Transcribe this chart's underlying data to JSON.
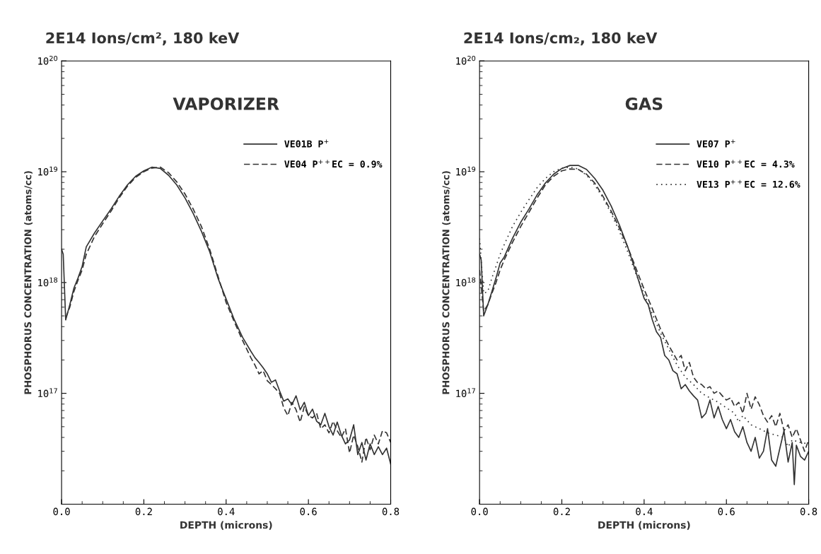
{
  "chart_data": [
    {
      "type": "line",
      "title": "2E14 Ions/cm², 180 keV",
      "xlabel": "DEPTH (microns)",
      "ylabel": "PHOSPHORUS CONCENTRATION (atoms/cc)",
      "annotations": [
        "VAPORIZER"
      ],
      "log": "y",
      "xlim": [
        0,
        0.8
      ],
      "xticks": [
        {
          "value": 0,
          "label": "0.0"
        },
        0.2,
        0.4,
        0.6,
        0.8
      ],
      "ylim": [
        1e+16,
        1e+20
      ],
      "yticks": [
        {
          "value": 1e+17,
          "label": "10$^{17}$"
        },
        {
          "value": 1e+18,
          "label": "10$^{18}$"
        },
        {
          "value": 1e+19,
          "label": "10$^{19}$"
        },
        {
          "value": 1e+20,
          "label": "10$^{20}$"
        }
      ],
      "legend": "top right",
      "grid": false,
      "series": [
        {
          "name": "VE01B P$^{+}$",
          "color": "#333333",
          "line_style": "solid",
          "x": [
            0.0,
            0.004,
            0.01,
            0.02,
            0.03,
            0.04,
            0.05,
            0.06,
            0.08,
            0.1,
            0.12,
            0.14,
            0.16,
            0.18,
            0.2,
            0.22,
            0.24,
            0.26,
            0.28,
            0.3,
            0.32,
            0.34,
            0.36,
            0.38,
            0.4,
            0.42,
            0.44,
            0.46,
            0.47,
            0.48,
            0.49,
            0.5,
            0.51,
            0.52,
            0.53,
            0.54,
            0.55,
            0.56,
            0.57,
            0.58,
            0.59,
            0.6,
            0.61,
            0.62,
            0.63,
            0.64,
            0.65,
            0.66,
            0.67,
            0.68,
            0.69,
            0.7,
            0.71,
            0.72,
            0.73,
            0.74,
            0.75,
            0.76,
            0.77,
            0.78,
            0.79,
            0.8
          ],
          "values": [
            2e+18,
            1.8e+18,
            4.6e+17,
            6.3e+17,
            8.9e+17,
            1.1e+18,
            1.4e+18,
            2.1e+18,
            2.8e+18,
            3.6e+18,
            4.6e+18,
            6e+18,
            7.6e+18,
            9.1e+18,
            1.02e+19,
            1.1e+19,
            1.07e+19,
            9.3e+18,
            7.6e+18,
            5.8e+18,
            4.2e+18,
            2.9e+18,
            1.9e+18,
            1.1e+18,
            7.1e+17,
            4.6e+17,
            3.2e+17,
            2.4e+17,
            2.1e+17,
            1.9e+17,
            1.7e+17,
            1.5e+17,
            1.26e+17,
            1.32e+17,
            1.05e+17,
            8.5e+16,
            8.9e+16,
            7.9e+16,
            9.5e+16,
            7.1e+16,
            8.3e+16,
            6.3e+16,
            7.2e+16,
            5.6e+16,
            5.2e+16,
            6.6e+16,
            5e+16,
            4.2e+16,
            5.5e+16,
            4.2e+16,
            3.5e+16,
            3.8e+16,
            5.2e+16,
            2.8e+16,
            3.6e+16,
            2.5e+16,
            3.5e+16,
            2.8e+16,
            3.3e+16,
            2.8e+16,
            3.2e+16,
            2.3e+16
          ]
        },
        {
          "name": "VE04 P$^{++}$EC = 0.9%",
          "color": "#333333",
          "line_style": "dashed",
          "x": [
            0.01,
            0.02,
            0.03,
            0.04,
            0.05,
            0.06,
            0.08,
            0.1,
            0.12,
            0.14,
            0.16,
            0.18,
            0.2,
            0.22,
            0.24,
            0.26,
            0.28,
            0.3,
            0.32,
            0.34,
            0.36,
            0.38,
            0.4,
            0.42,
            0.44,
            0.46,
            0.47,
            0.48,
            0.49,
            0.5,
            0.51,
            0.52,
            0.53,
            0.54,
            0.55,
            0.56,
            0.57,
            0.58,
            0.59,
            0.6,
            0.61,
            0.62,
            0.63,
            0.64,
            0.65,
            0.66,
            0.67,
            0.68,
            0.69,
            0.7,
            0.71,
            0.72,
            0.73,
            0.74,
            0.75,
            0.76,
            0.77,
            0.78,
            0.79,
            0.8
          ],
          "values": [
            4.8e+17,
            6e+17,
            8.3e+17,
            1.05e+18,
            1.3e+18,
            1.8e+18,
            2.6e+18,
            3.4e+18,
            4.4e+18,
            5.8e+18,
            7.4e+18,
            8.9e+18,
            1e+19,
            1.08e+19,
            1.1e+19,
            9.8e+18,
            8.1e+18,
            6.3e+18,
            4.6e+18,
            3.2e+18,
            2e+18,
            1.15e+18,
            6.6e+17,
            4.4e+17,
            3e+17,
            2.1e+17,
            1.8e+17,
            1.5e+17,
            1.6e+17,
            1.3e+17,
            1.2e+17,
            1.1e+17,
            1e+17,
            7.4e+16,
            6.3e+16,
            8.3e+16,
            7.1e+16,
            5.5e+16,
            7.6e+16,
            6.3e+16,
            6e+16,
            6.6e+16,
            4.8e+16,
            5.2e+16,
            4.4e+16,
            5.6e+16,
            4.6e+16,
            4e+16,
            4.8e+16,
            2.9e+16,
            4.2e+16,
            3.3e+16,
            2.4e+16,
            4e+16,
            3.1e+16,
            4.2e+16,
            3.5e+16,
            4.6e+16,
            4.4e+16,
            3.6e+16
          ]
        }
      ]
    },
    {
      "type": "line",
      "title": "2E14 Ions/cm₂, 180 keV",
      "xlabel": "DEPTH (microns)",
      "ylabel": "PHOSPHORUS CONCENTRATION (atoms/cc)",
      "annotations": [
        "GAS"
      ],
      "log": "y",
      "xlim": [
        0,
        0.8
      ],
      "xticks": [
        {
          "value": 0,
          "label": "0.0"
        },
        0.2,
        0.4,
        0.6,
        0.8
      ],
      "ylim": [
        1e+16,
        1e+20
      ],
      "yticks": [
        {
          "value": 1e+17,
          "label": "10$^{17}$"
        },
        {
          "value": 1e+18,
          "label": "10$^{18}$"
        },
        {
          "value": 1e+19,
          "label": "10$^{19}$"
        },
        {
          "value": 1e+20,
          "label": "10$^{20}$"
        }
      ],
      "legend": "top right",
      "grid": false,
      "series": [
        {
          "name": "VE07 P$^{+}$",
          "color": "#333333",
          "line_style": "solid",
          "x": [
            0.0,
            0.004,
            0.01,
            0.02,
            0.03,
            0.04,
            0.05,
            0.06,
            0.08,
            0.1,
            0.12,
            0.14,
            0.16,
            0.18,
            0.2,
            0.22,
            0.24,
            0.26,
            0.28,
            0.3,
            0.32,
            0.34,
            0.36,
            0.38,
            0.4,
            0.41,
            0.42,
            0.43,
            0.44,
            0.45,
            0.46,
            0.47,
            0.48,
            0.49,
            0.5,
            0.51,
            0.52,
            0.53,
            0.54,
            0.55,
            0.56,
            0.57,
            0.58,
            0.59,
            0.6,
            0.61,
            0.62,
            0.63,
            0.64,
            0.65,
            0.66,
            0.67,
            0.68,
            0.69,
            0.7,
            0.71,
            0.72,
            0.73,
            0.74,
            0.75,
            0.76,
            0.765,
            0.77,
            0.78,
            0.79,
            0.8
          ],
          "values": [
            1.8e+18,
            1.6e+18,
            5e+17,
            6.3e+17,
            8.3e+17,
            1.1e+18,
            1.5e+18,
            1.7e+18,
            2.5e+18,
            3.5e+18,
            4.6e+18,
            6.2e+18,
            7.9e+18,
            9.5e+18,
            1.07e+19,
            1.14e+19,
            1.14e+19,
            1.05e+19,
            8.7e+18,
            6.8e+18,
            4.9e+18,
            3.3e+18,
            2.1e+18,
            1.25e+18,
            7.2e+17,
            6.3e+17,
            4.6e+17,
            3.6e+17,
            3.2e+17,
            2.2e+17,
            2e+17,
            1.6e+17,
            1.5e+17,
            1.1e+17,
            1.2e+17,
            1.05e+17,
            9.5e+16,
            8.7e+16,
            6e+16,
            6.6e+16,
            8.7e+16,
            6e+16,
            7.6e+16,
            5.8e+16,
            4.8e+16,
            5.8e+16,
            4.5e+16,
            4e+16,
            5e+16,
            3.6e+16,
            3e+16,
            4e+16,
            2.6e+16,
            3e+16,
            4.8e+16,
            2.5e+16,
            2.2e+16,
            3.2e+16,
            4.6e+16,
            2.4e+16,
            3.6e+16,
            1.5e+16,
            3.4e+16,
            2.7e+16,
            2.5e+16,
            3e+16
          ]
        },
        {
          "name": "VE10 P$^{++}$EC = 4.3%",
          "color": "#333333",
          "line_style": "dashed",
          "x": [
            0.0,
            0.01,
            0.02,
            0.03,
            0.04,
            0.05,
            0.06,
            0.08,
            0.1,
            0.12,
            0.14,
            0.16,
            0.18,
            0.2,
            0.22,
            0.24,
            0.26,
            0.28,
            0.3,
            0.32,
            0.34,
            0.36,
            0.38,
            0.4,
            0.42,
            0.44,
            0.46,
            0.48,
            0.49,
            0.5,
            0.51,
            0.52,
            0.53,
            0.54,
            0.55,
            0.56,
            0.57,
            0.58,
            0.59,
            0.6,
            0.61,
            0.62,
            0.63,
            0.64,
            0.65,
            0.66,
            0.67,
            0.68,
            0.69,
            0.7,
            0.71,
            0.72,
            0.73,
            0.74,
            0.75,
            0.76,
            0.77,
            0.78,
            0.79,
            0.8
          ],
          "values": [
            1.3e+18,
            5.5e+17,
            6.3e+17,
            8e+17,
            1e+18,
            1.3e+18,
            1.6e+18,
            2.3e+18,
            3.2e+18,
            4.3e+18,
            5.8e+18,
            7.6e+18,
            9.1e+18,
            1.02e+19,
            1.06e+19,
            1.05e+19,
            9.5e+18,
            7.9e+18,
            6e+18,
            4.4e+18,
            3.1e+18,
            2.1e+18,
            1.35e+18,
            8.7e+17,
            5.8e+17,
            3.8e+17,
            2.7e+17,
            2e+17,
            2.2e+17,
            1.6e+17,
            1.9e+17,
            1.4e+17,
            1.25e+17,
            1.2e+17,
            1.1e+17,
            1.15e+17,
            1e+17,
            1.05e+17,
            9.5e+16,
            8.7e+16,
            9.1e+16,
            7.6e+16,
            8.3e+16,
            6.6e+16,
            1e+17,
            7.2e+16,
            9.3e+16,
            7.9e+16,
            6.3e+16,
            5.5e+16,
            6.3e+16,
            5e+16,
            6.6e+16,
            4.6e+16,
            5.2e+16,
            4e+16,
            4.8e+16,
            3.8e+16,
            3e+16,
            3.8e+16
          ]
        },
        {
          "name": "VE13 P$^{++}$EC = 12.6%",
          "color": "#333333",
          "line_style": "dotted",
          "x": [
            0.0,
            0.01,
            0.02,
            0.03,
            0.04,
            0.05,
            0.06,
            0.08,
            0.1,
            0.12,
            0.14,
            0.16,
            0.18,
            0.2,
            0.22,
            0.24,
            0.26,
            0.28,
            0.3,
            0.32,
            0.34,
            0.36,
            0.38,
            0.4,
            0.42,
            0.44,
            0.46,
            0.48,
            0.5,
            0.52,
            0.54,
            0.56,
            0.58,
            0.6,
            0.62,
            0.63,
            0.64,
            0.66,
            0.68,
            0.7,
            0.72,
            0.74,
            0.75,
            0.76,
            0.78,
            0.8
          ],
          "values": [
            2.5e+18,
            8e+17,
            8.3e+17,
            1.1e+18,
            1.4e+18,
            1.8e+18,
            2.2e+18,
            3.2e+18,
            4.3e+18,
            5.6e+18,
            7.2e+18,
            8.7e+18,
            1e+19,
            1.08e+19,
            1.1e+19,
            1.06e+19,
            9.3e+18,
            7.6e+18,
            5.8e+18,
            4.2e+18,
            2.9e+18,
            1.9e+18,
            1.2e+18,
            7.9e+17,
            5.2e+17,
            3.5e+17,
            2.5e+17,
            1.8e+17,
            1.4e+17,
            1.2e+17,
            1e+17,
            9.1e+16,
            8.3e+16,
            7.4e+16,
            6.6e+16,
            5.5e+16,
            6.3e+16,
            5.2e+16,
            4.8e+16,
            4.4e+16,
            4.2e+16,
            4e+16,
            3.3e+16,
            3.8e+16,
            3.6e+16,
            3.5e+16
          ]
        }
      ]
    }
  ]
}
